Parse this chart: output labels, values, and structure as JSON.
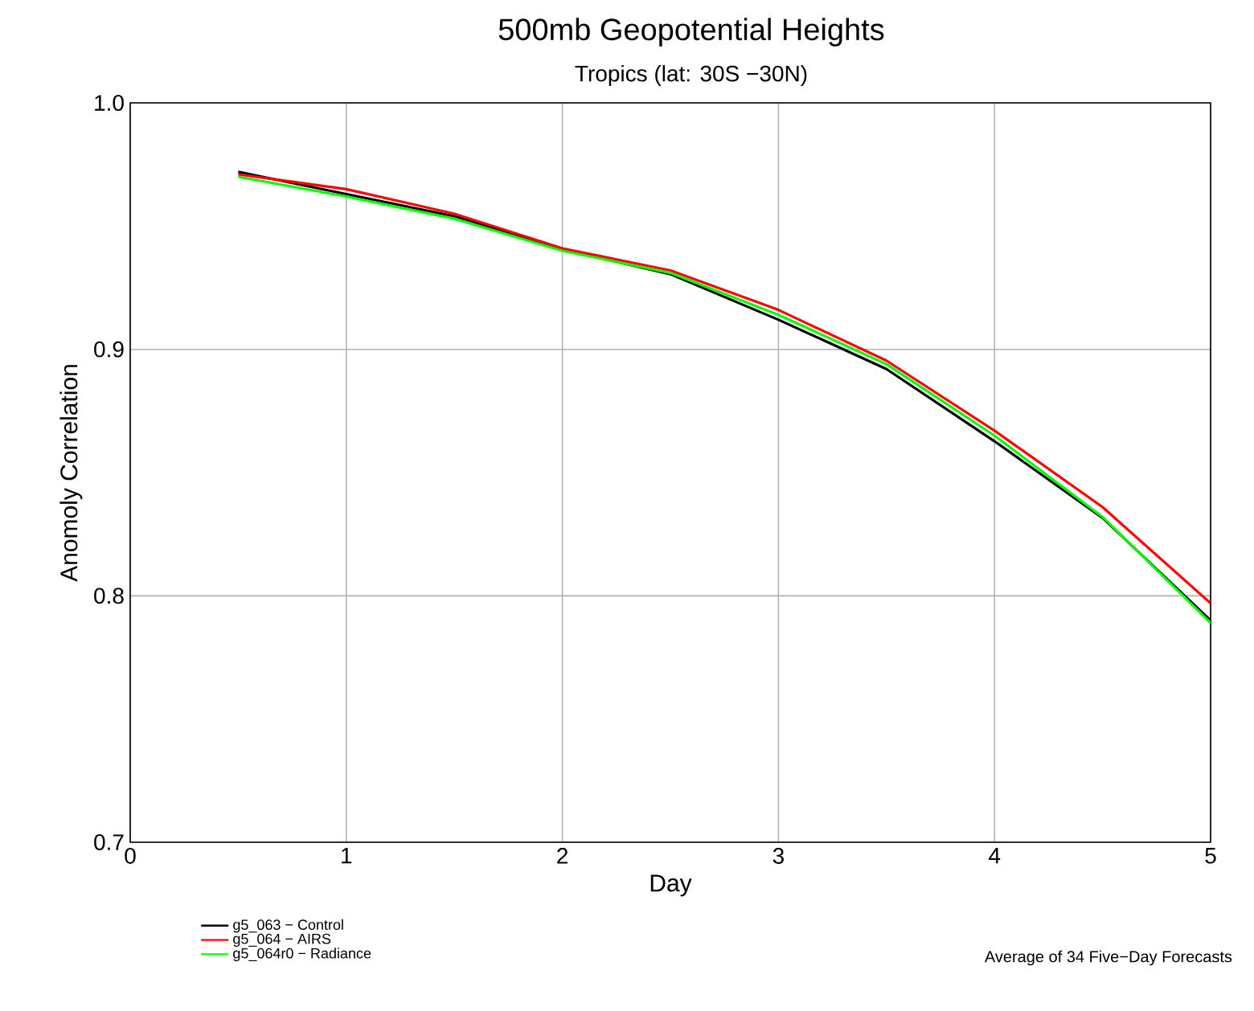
{
  "chart_data": {
    "type": "line",
    "title": "500mb  Geopotential Heights",
    "subtitle": "Tropics  (lat: 30S −30N)",
    "xlabel": "Day",
    "ylabel": "Anomoly Correlation",
    "x": [
      0.5,
      1,
      1.5,
      2,
      2.5,
      3,
      3.5,
      4,
      4.5,
      5
    ],
    "series": [
      {
        "name": "g5_063  −  Control",
        "color": "#000000",
        "values": [
          0.972,
          0.963,
          0.954,
          0.9405,
          0.9305,
          0.912,
          0.892,
          0.8627,
          0.8316,
          0.79
        ]
      },
      {
        "name": "g5_064  −  AIRS",
        "color": "#ff0000",
        "values": [
          0.971,
          0.965,
          0.955,
          0.941,
          0.932,
          0.916,
          0.8954,
          0.867,
          0.836,
          0.797
        ]
      },
      {
        "name": "g5_064r0  −  Radiance",
        "color": "#00ff00",
        "values": [
          0.97,
          0.962,
          0.953,
          0.94,
          0.931,
          0.914,
          0.894,
          0.865,
          0.832,
          0.789
        ]
      }
    ],
    "xlim": [
      0,
      5
    ],
    "xticks": [
      0,
      1,
      2,
      3,
      4,
      5
    ],
    "ylim": [
      0.7,
      1.0
    ],
    "yticks": [
      {
        "value": 0.7,
        "label": "0.7"
      },
      {
        "value": 0.8,
        "label": "0.8"
      },
      {
        "value": 0.9,
        "label": "0.9"
      },
      {
        "value": 1.0,
        "label": "1.0"
      }
    ],
    "grid": true,
    "legend": "bottom left",
    "line_style": "solid",
    "marker": "none",
    "annotations": [
      "Average of 34 Five−Day Forecasts"
    ]
  }
}
